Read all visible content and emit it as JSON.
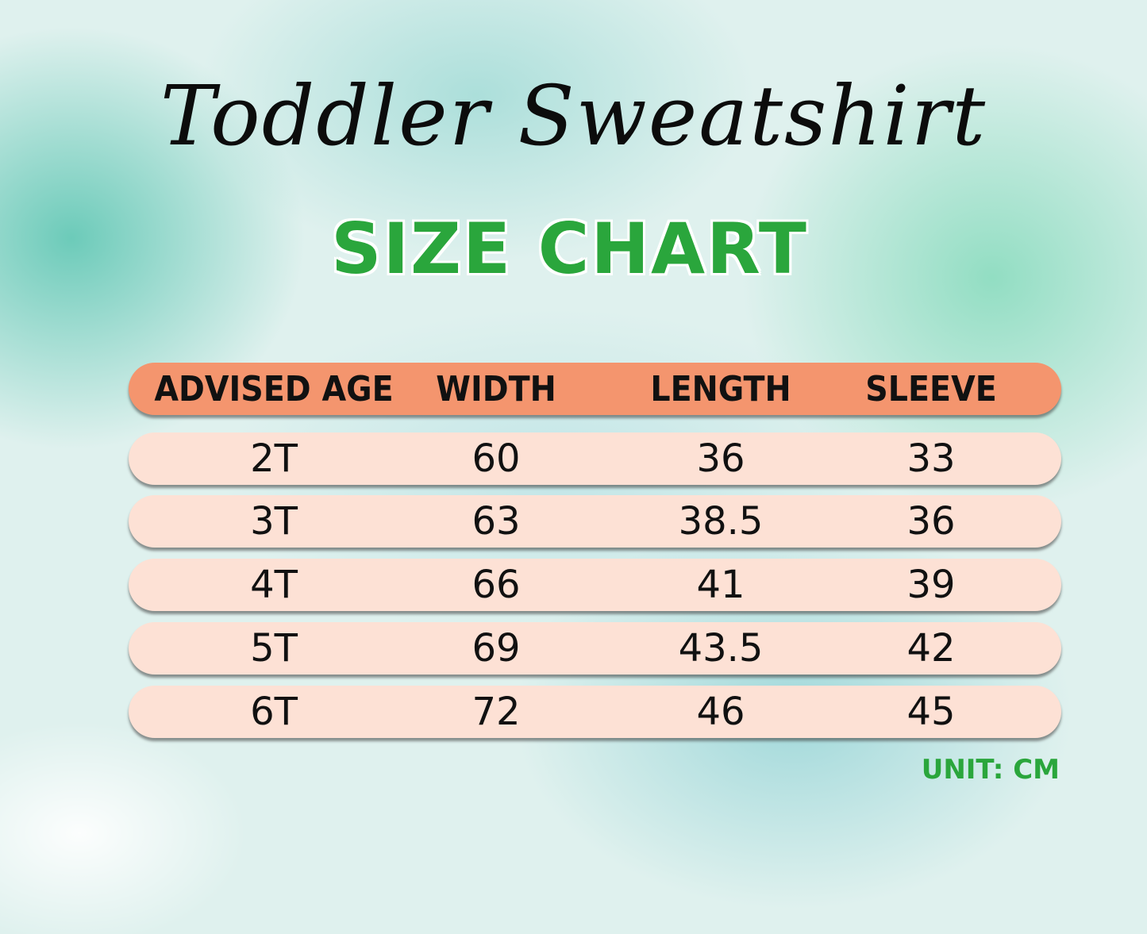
{
  "title": "Toddler Sweatshirt",
  "subtitle": "SIZE CHART",
  "table": {
    "headers": [
      "ADVISED AGE",
      "WIDTH",
      "LENGTH",
      "SLEEVE"
    ],
    "rows": [
      [
        "2T",
        "60",
        "36",
        "33"
      ],
      [
        "3T",
        "63",
        "38.5",
        "36"
      ],
      [
        "4T",
        "66",
        "41",
        "39"
      ],
      [
        "5T",
        "69",
        "43.5",
        "42"
      ],
      [
        "6T",
        "72",
        "46",
        "45"
      ]
    ]
  },
  "unit": "UNIT: CM",
  "colors": {
    "header": "#f4956e",
    "row": "#fde1d5",
    "accent_green": "#2aa63c"
  }
}
